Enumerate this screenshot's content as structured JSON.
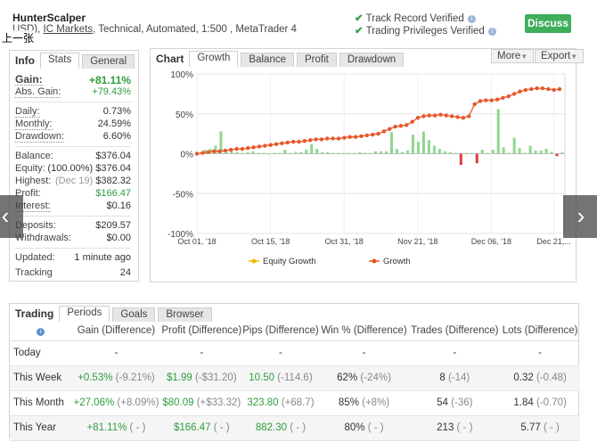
{
  "header": {
    "title": "HunterScalper",
    "sub_prefix": "USD), ",
    "broker": "IC Markets",
    "sub_suffix": ", Technical, Automated, 1:500 , MetaTrader 4",
    "overlay_text": "上一张",
    "track_record": "Track Record Verified",
    "trading_privileges": "Trading Privileges Verified",
    "discuss_label": "Discuss"
  },
  "info_panel": {
    "tab_label": "Info",
    "tabs": [
      "Stats",
      "General"
    ],
    "rows": [
      {
        "key": "Gain:",
        "value": "+81.11%"
      },
      {
        "key": "Abs. Gain:",
        "value": "+79.43%"
      },
      {
        "key": "Daily:",
        "value": "0.73%"
      },
      {
        "key": "Monthly:",
        "value": "24.59%"
      },
      {
        "key": "Drawdown:",
        "value": "6.60%"
      },
      {
        "key": "Balance:",
        "value": "$376.04"
      },
      {
        "key": "Equity:",
        "value": "(100.00%) $376.04"
      },
      {
        "key": "Highest:",
        "value_note": "(Dec 19)",
        "value": "$382.32"
      },
      {
        "key": "Profit:",
        "value": "$166.47"
      },
      {
        "key": "Interest:",
        "value": "$0.16"
      },
      {
        "key": "Deposits:",
        "value": "$209.57"
      },
      {
        "key": "Withdrawals:",
        "value": "$0.00"
      },
      {
        "key": "Updated:",
        "value": "1 minute ago"
      },
      {
        "key": "Tracking",
        "value": "24"
      }
    ]
  },
  "chart_panel": {
    "tab_label": "Chart",
    "tabs": [
      "Growth",
      "Balance",
      "Profit",
      "Drawdown"
    ],
    "more_label": "More",
    "export_label": "Export"
  },
  "chart_data": {
    "type": "line",
    "y_ticks": [
      "100%",
      "50%",
      "0%",
      "-50%",
      "-100%"
    ],
    "ylim": [
      -100,
      100
    ],
    "x_ticks": [
      "Oct 01, '18",
      "Oct 15, '18",
      "Oct 31, '18",
      "Nov 21, '18",
      "Dec 06, '18",
      "Dec 21,..."
    ],
    "legend": [
      "Equity Growth",
      "Growth"
    ],
    "colors": {
      "growth": "#e8572a",
      "equity": "#f5b800",
      "bar_pos": "#8fd68f",
      "bar_neg": "#e03b3b"
    },
    "series": [
      {
        "name": "Growth",
        "values": [
          0,
          1,
          2,
          3,
          3,
          4,
          5,
          6,
          6,
          7,
          8,
          9,
          10,
          11,
          12,
          13,
          14,
          15,
          15,
          16,
          17,
          18,
          18,
          19,
          19,
          19,
          20,
          21,
          21,
          22,
          23,
          24,
          25,
          28,
          31,
          34,
          35,
          36,
          40,
          45,
          47,
          48,
          48,
          49,
          48,
          47,
          46,
          45,
          47,
          62,
          66,
          67,
          67,
          68,
          70,
          72,
          75,
          78,
          80,
          81,
          82,
          82,
          81,
          80,
          81
        ]
      },
      {
        "name": "Daily",
        "values": [
          1,
          5,
          6,
          10,
          28,
          4,
          3,
          2,
          1,
          2,
          3,
          1,
          1,
          0,
          1,
          1,
          5,
          1,
          2,
          2,
          5,
          12,
          6,
          2,
          2,
          1,
          1,
          1,
          1,
          1,
          2,
          1,
          1,
          3,
          3,
          3,
          27,
          6,
          2,
          4,
          24,
          15,
          28,
          17,
          10,
          6,
          3,
          2,
          1,
          -14,
          1,
          1,
          -12,
          5,
          1,
          5,
          56,
          8,
          1,
          20,
          7,
          1,
          10,
          4,
          4,
          6,
          2,
          -3,
          2
        ]
      }
    ]
  },
  "trading": {
    "tab_label": "Trading",
    "tabs": [
      "Periods",
      "Goals",
      "Browser"
    ],
    "columns": [
      "",
      "Gain (Difference)",
      "Profit (Difference)",
      "Pips (Difference)",
      "Win % (Difference)",
      "Trades (Difference)",
      "Lots (Difference)"
    ],
    "rows": [
      {
        "period": "Today",
        "gain": "-",
        "gain_diff": "",
        "profit": "-",
        "profit_diff": "",
        "pips": "-",
        "pips_diff": "",
        "win": "-",
        "win_diff": "",
        "trades": "-",
        "trades_diff": "",
        "lots": "-",
        "lots_diff": ""
      },
      {
        "period": "This Week",
        "gain": "+0.53%",
        "gain_diff": "(-9.21%)",
        "profit": "$1.99",
        "profit_diff": "(-$31.20)",
        "pips": "10.50",
        "pips_diff": "(-114.6)",
        "win": "62%",
        "win_diff": "(-24%)",
        "trades": "8",
        "trades_diff": "(-14)",
        "lots": "0.32",
        "lots_diff": "(-0.48)"
      },
      {
        "period": "This Month",
        "gain": "+27.06%",
        "gain_diff": "(+8.09%)",
        "profit": "$80.09",
        "profit_diff": "(+$33.32)",
        "pips": "323.80",
        "pips_diff": "(+68.7)",
        "win": "85%",
        "win_diff": "(+8%)",
        "trades": "54",
        "trades_diff": "(-36)",
        "lots": "1.84",
        "lots_diff": "(-0.70)"
      },
      {
        "period": "This Year",
        "gain": "+81.11%",
        "gain_diff": "( - )",
        "profit": "$166.47",
        "profit_diff": "( - )",
        "pips": "882.30",
        "pips_diff": "( - )",
        "win": "80%",
        "win_diff": "( - )",
        "trades": "213",
        "trades_diff": "( - )",
        "lots": "5.77",
        "lots_diff": "( - )"
      }
    ]
  },
  "nav": {
    "prev": "‹",
    "next": "›"
  }
}
